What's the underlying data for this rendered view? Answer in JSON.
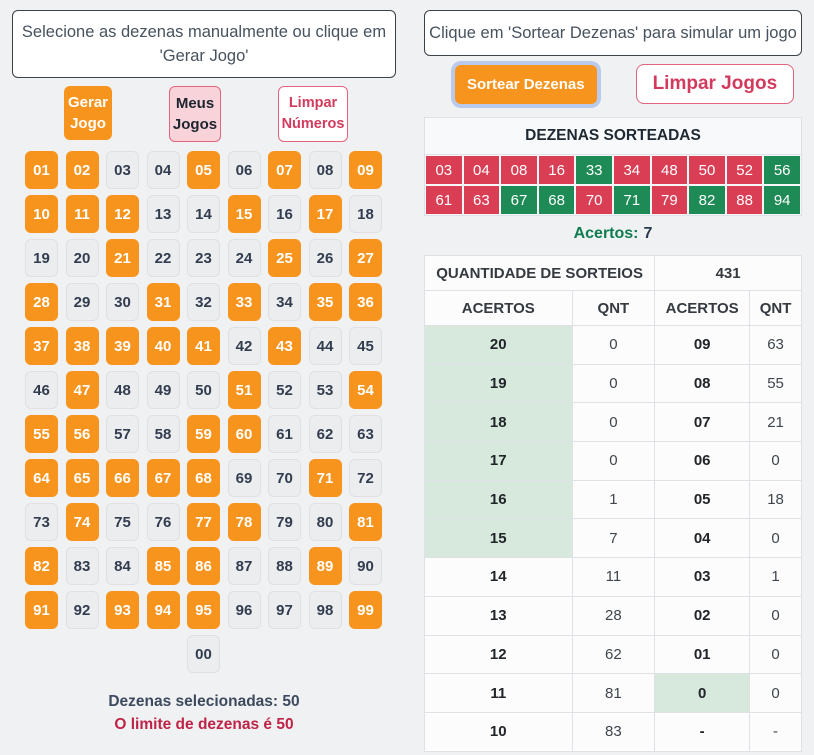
{
  "colors": {
    "orange": "#F7941E",
    "red": "#D93E55",
    "green": "#1E8A55",
    "green_text": "#0E7C4F",
    "light_green": "#D6E9DC",
    "pink_bg": "#F8D3DA",
    "pink_border": "#E2647E",
    "crimson_text": "#D23B5D",
    "dark_text": "#313D4F",
    "muted_text": "#46525E",
    "body_bg": "#F0F1F3",
    "cell_bg": "#ECEDEF",
    "cell_border": "#DEE0E3",
    "table_border": "#DEE2E6",
    "header_bg": "#F8F9FA"
  },
  "left": {
    "instruction": "Selecione as dezenas manualmente ou clique em 'Gerar Jogo'",
    "buttons": {
      "gerar": "Gerar Jogo",
      "meus": "Meus Jogos",
      "limpar": "Limpar Números"
    },
    "grid": {
      "numbers": [
        "01",
        "02",
        "03",
        "04",
        "05",
        "06",
        "07",
        "08",
        "09",
        "10",
        "11",
        "12",
        "13",
        "14",
        "15",
        "16",
        "17",
        "18",
        "19",
        "20",
        "21",
        "22",
        "23",
        "24",
        "25",
        "26",
        "27",
        "28",
        "29",
        "30",
        "31",
        "32",
        "33",
        "34",
        "35",
        "36",
        "37",
        "38",
        "39",
        "40",
        "41",
        "42",
        "43",
        "44",
        "45",
        "46",
        "47",
        "48",
        "49",
        "50",
        "51",
        "52",
        "53",
        "54",
        "55",
        "56",
        "57",
        "58",
        "59",
        "60",
        "61",
        "62",
        "63",
        "64",
        "65",
        "66",
        "67",
        "68",
        "69",
        "70",
        "71",
        "72",
        "73",
        "74",
        "75",
        "76",
        "77",
        "78",
        "79",
        "80",
        "81",
        "82",
        "83",
        "84",
        "85",
        "86",
        "87",
        "88",
        "89",
        "90",
        "91",
        "92",
        "93",
        "94",
        "95",
        "96",
        "97",
        "98",
        "99",
        "00"
      ],
      "selected": [
        "01",
        "02",
        "05",
        "07",
        "09",
        "10",
        "11",
        "12",
        "15",
        "17",
        "21",
        "25",
        "27",
        "28",
        "31",
        "33",
        "35",
        "36",
        "37",
        "38",
        "39",
        "40",
        "41",
        "43",
        "47",
        "51",
        "54",
        "55",
        "56",
        "59",
        "60",
        "64",
        "65",
        "66",
        "67",
        "68",
        "71",
        "74",
        "77",
        "78",
        "81",
        "82",
        "85",
        "86",
        "89",
        "91",
        "93",
        "94",
        "95",
        "99"
      ]
    },
    "selected_label": "Dezenas selecionadas: 50",
    "limit_label": "O limite de dezenas é 50"
  },
  "right": {
    "instruction": "Clique em 'Sortear Dezenas' para simular um jogo",
    "buttons": {
      "sortear": "Sortear Dezenas",
      "limpar": "Limpar Jogos"
    },
    "drawn": {
      "title": "DEZENAS SORTEADAS",
      "rows": [
        [
          {
            "n": "03",
            "hit": false
          },
          {
            "n": "04",
            "hit": false
          },
          {
            "n": "08",
            "hit": false
          },
          {
            "n": "16",
            "hit": false
          },
          {
            "n": "33",
            "hit": true
          },
          {
            "n": "34",
            "hit": false
          },
          {
            "n": "48",
            "hit": false
          },
          {
            "n": "50",
            "hit": false
          },
          {
            "n": "52",
            "hit": false
          },
          {
            "n": "56",
            "hit": true
          }
        ],
        [
          {
            "n": "61",
            "hit": false
          },
          {
            "n": "63",
            "hit": false
          },
          {
            "n": "67",
            "hit": true
          },
          {
            "n": "68",
            "hit": true
          },
          {
            "n": "70",
            "hit": false
          },
          {
            "n": "71",
            "hit": true
          },
          {
            "n": "79",
            "hit": false
          },
          {
            "n": "82",
            "hit": true
          },
          {
            "n": "88",
            "hit": false
          },
          {
            "n": "94",
            "hit": true
          }
        ]
      ],
      "acertos_label": "Acertos:",
      "acertos_value": "7"
    },
    "stats": {
      "title": "QUANTIDADE DE SORTEIOS",
      "total": "431",
      "columns": [
        "ACERTOS",
        "QNT",
        "ACERTOS",
        "QNT"
      ],
      "rows": [
        {
          "a1": "20",
          "q1": "0",
          "a2": "09",
          "q2": "63",
          "h1": true,
          "h2": false
        },
        {
          "a1": "19",
          "q1": "0",
          "a2": "08",
          "q2": "55",
          "h1": true,
          "h2": false
        },
        {
          "a1": "18",
          "q1": "0",
          "a2": "07",
          "q2": "21",
          "h1": true,
          "h2": false
        },
        {
          "a1": "17",
          "q1": "0",
          "a2": "06",
          "q2": "0",
          "h1": true,
          "h2": false
        },
        {
          "a1": "16",
          "q1": "1",
          "a2": "05",
          "q2": "18",
          "h1": true,
          "h2": false
        },
        {
          "a1": "15",
          "q1": "7",
          "a2": "04",
          "q2": "0",
          "h1": true,
          "h2": false
        },
        {
          "a1": "14",
          "q1": "11",
          "a2": "03",
          "q2": "1",
          "h1": false,
          "h2": false
        },
        {
          "a1": "13",
          "q1": "28",
          "a2": "02",
          "q2": "0",
          "h1": false,
          "h2": false
        },
        {
          "a1": "12",
          "q1": "62",
          "a2": "01",
          "q2": "0",
          "h1": false,
          "h2": false
        },
        {
          "a1": "11",
          "q1": "81",
          "a2": "0",
          "q2": "0",
          "h1": false,
          "h2": true
        },
        {
          "a1": "10",
          "q1": "83",
          "a2": "-",
          "q2": "-",
          "h1": false,
          "h2": false
        }
      ]
    }
  }
}
